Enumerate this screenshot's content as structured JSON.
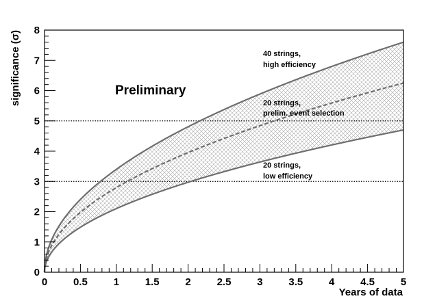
{
  "chart_data": {
    "type": "line",
    "title": "",
    "xlabel": "Years of data",
    "ylabel": "significance (σ)",
    "xlim": [
      0,
      5
    ],
    "ylim": [
      0,
      8
    ],
    "x_ticks": [
      "0",
      "0.5",
      "1",
      "1.5",
      "2",
      "2.5",
      "3",
      "3.5",
      "4",
      "4.5",
      "5"
    ],
    "y_ticks": [
      "0",
      "1",
      "2",
      "3",
      "4",
      "5",
      "6",
      "7",
      "8"
    ],
    "grid": false,
    "series": [
      {
        "name": "40 strings, high efficiency",
        "style": "solid",
        "model": "a*sqrt(t)",
        "value_at_5_years": 7.6
      },
      {
        "name": "20 strings, prelim. event selection",
        "style": "dashed",
        "model": "a*sqrt(t)",
        "value_at_5_years": 6.25
      },
      {
        "name": "20 strings, low efficiency",
        "style": "solid",
        "model": "a*sqrt(t)",
        "value_at_5_years": 4.7
      }
    ],
    "band": {
      "between": [
        "20 strings, low efficiency",
        "40 strings, high efficiency"
      ],
      "fill": "hatched"
    },
    "reference_lines": [
      {
        "y": 3,
        "style": "dotted"
      },
      {
        "y": 5,
        "style": "dotted"
      }
    ],
    "annotations": [
      {
        "lines": [
          "40 strings,",
          "high efficiency"
        ]
      },
      {
        "lines": [
          "20 strings,",
          "prelim. event selection"
        ]
      },
      {
        "lines": [
          "20 strings,",
          "low efficiency"
        ]
      }
    ],
    "watermark": "Preliminary",
    "colors": {
      "curve": "#6e6e6e",
      "hatch": "#8c8c8c",
      "axis": "#000000"
    }
  }
}
